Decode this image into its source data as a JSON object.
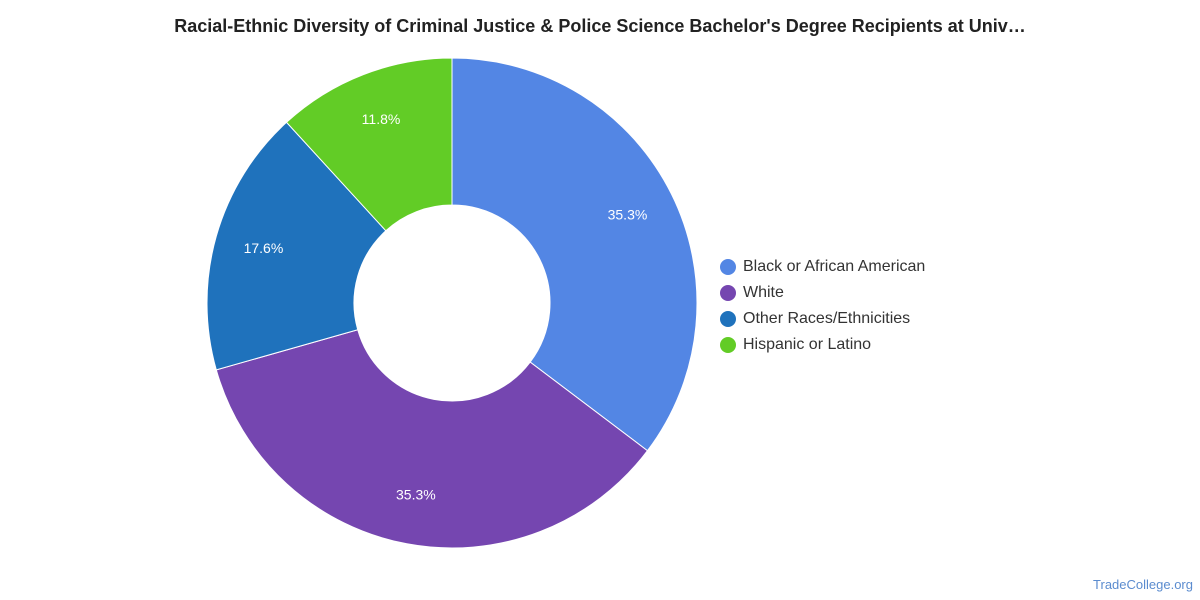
{
  "chart_data": {
    "type": "pie",
    "title": "Racial-Ethnic Diversity of Criminal Justice & Police Science Bachelor's Degree Recipients at Univ…",
    "donut": true,
    "legend_position": "right",
    "slices": [
      {
        "name": "Black or African American",
        "value": 35.3,
        "label": "35.3%",
        "color": "#5386e4"
      },
      {
        "name": "White",
        "value": 35.3,
        "label": "35.3%",
        "color": "#7546b0"
      },
      {
        "name": "Other Races/Ethnicities",
        "value": 17.6,
        "label": "17.6%",
        "color": "#1f72bc"
      },
      {
        "name": "Hispanic or Latino",
        "value": 11.8,
        "label": "11.8%",
        "color": "#62cc26"
      }
    ]
  },
  "watermark": "TradeCollege.org"
}
